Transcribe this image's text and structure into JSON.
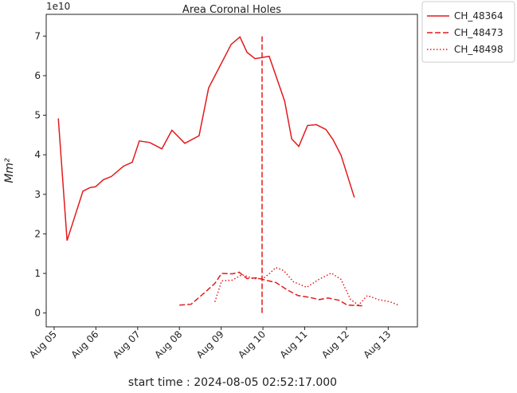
{
  "chart_data": {
    "type": "line",
    "title": "Area Coronal Holes",
    "xlabel": "start time : 2024-08-05 02:52:17.000",
    "ylabel": "Mm²",
    "y_offset_text": "1e10",
    "xlim": [
      -0.19,
      8.7
    ],
    "ylim": [
      -0.35,
      7.55
    ],
    "xticks": [
      {
        "value": 0,
        "label": "Aug 05"
      },
      {
        "value": 1,
        "label": "Aug 06"
      },
      {
        "value": 2,
        "label": "Aug 07"
      },
      {
        "value": 3,
        "label": "Aug 08"
      },
      {
        "value": 4,
        "label": "Aug 09"
      },
      {
        "value": 5,
        "label": "Aug 10"
      },
      {
        "value": 6,
        "label": "Aug 11"
      },
      {
        "value": 7,
        "label": "Aug 12"
      },
      {
        "value": 8,
        "label": "Aug 13"
      }
    ],
    "yticks": [
      0,
      1,
      2,
      3,
      4,
      5,
      6,
      7
    ],
    "vline": {
      "x": 4.98,
      "ymin": 0,
      "ymax": 7,
      "color": "#e31a1c"
    },
    "series": [
      {
        "name": "CH_48364",
        "color": "#e31a1c",
        "dash": "solid",
        "x": [
          0.1,
          0.31,
          0.69,
          0.86,
          0.99,
          1.18,
          1.37,
          1.66,
          1.87,
          2.04,
          2.29,
          2.58,
          2.82,
          3.13,
          3.47,
          3.7,
          4.24,
          4.45,
          4.62,
          4.81,
          5.04,
          5.15,
          5.52,
          5.69,
          5.86,
          6.07,
          6.28,
          6.51,
          6.68,
          6.87,
          7.19
        ],
        "values": [
          4.92,
          1.83,
          3.08,
          3.17,
          3.19,
          3.37,
          3.45,
          3.71,
          3.81,
          4.35,
          4.31,
          4.15,
          4.62,
          4.29,
          4.48,
          5.69,
          6.79,
          6.98,
          6.59,
          6.43,
          6.47,
          6.49,
          5.36,
          4.4,
          4.21,
          4.74,
          4.76,
          4.64,
          4.38,
          3.99,
          2.92
        ]
      },
      {
        "name": "CH_48473",
        "color": "#e31a1c",
        "dash": "dashed",
        "x": [
          3.0,
          3.28,
          3.61,
          3.85,
          4.01,
          4.27,
          4.43,
          4.62,
          4.85,
          5.06,
          5.31,
          5.59,
          5.84,
          6.09,
          6.35,
          6.56,
          6.83,
          7.02,
          7.4
        ],
        "values": [
          0.2,
          0.22,
          0.52,
          0.75,
          1.0,
          0.99,
          1.03,
          0.87,
          0.89,
          0.83,
          0.77,
          0.58,
          0.44,
          0.4,
          0.34,
          0.38,
          0.32,
          0.2,
          0.18
        ]
      },
      {
        "name": "CH_48498",
        "color": "#e31a1c",
        "dash": "dotted",
        "x": [
          3.85,
          4.01,
          4.27,
          4.5,
          4.77,
          5.0,
          5.15,
          5.31,
          5.5,
          5.73,
          6.05,
          6.34,
          6.64,
          6.87,
          7.1,
          7.29,
          7.5,
          7.77,
          8.05,
          8.24
        ],
        "values": [
          0.28,
          0.81,
          0.83,
          0.97,
          0.87,
          0.87,
          0.99,
          1.15,
          1.07,
          0.79,
          0.65,
          0.85,
          1.01,
          0.85,
          0.34,
          0.2,
          0.44,
          0.34,
          0.28,
          0.2
        ]
      }
    ]
  }
}
